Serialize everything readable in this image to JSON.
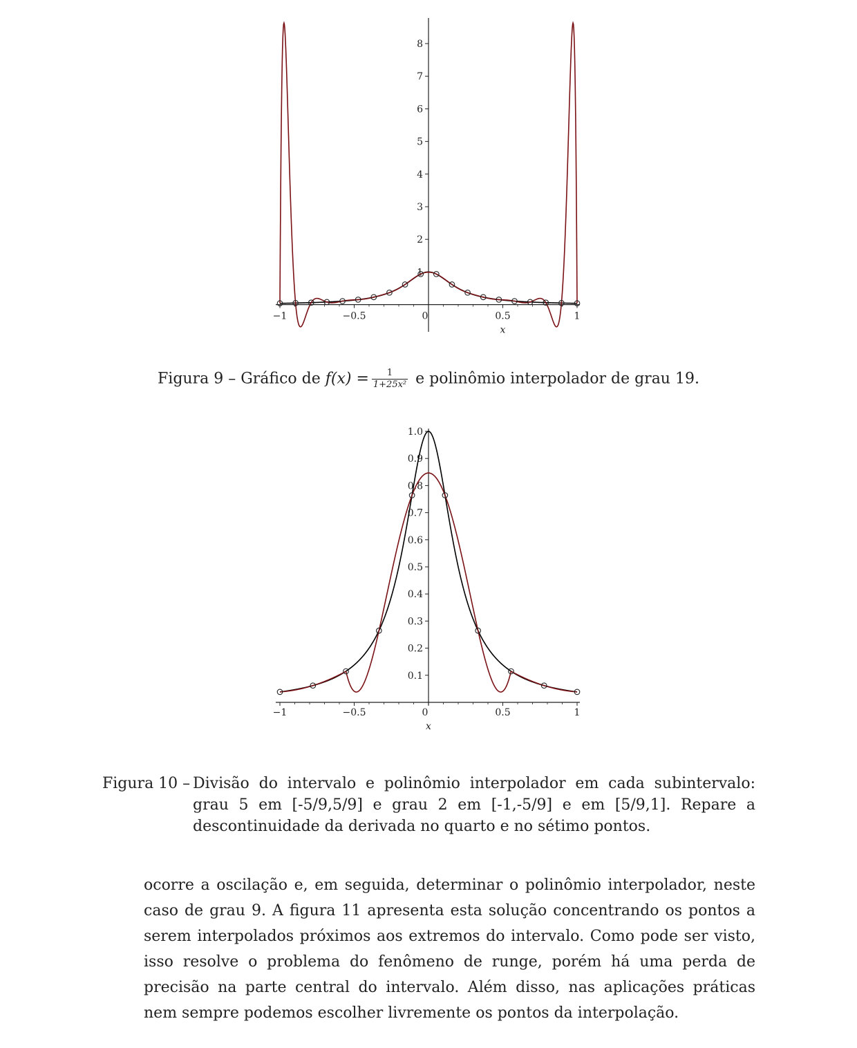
{
  "chart_data": [
    {
      "type": "line",
      "xlabel": "x",
      "xlim": [
        -1,
        1
      ],
      "ylim": [
        -0.75,
        8.7
      ],
      "x_ticks": [
        -1,
        -0.5,
        0,
        0.5,
        1
      ],
      "x_tick_labels": [
        "−1",
        "−0.5",
        "0",
        "0.5",
        "1"
      ],
      "y_ticks": [
        1,
        2,
        3,
        4,
        5,
        6,
        7,
        8
      ],
      "y_tick_labels": [
        "1",
        "2",
        "3",
        "4",
        "5",
        "6",
        "7",
        "8"
      ],
      "series": [
        {
          "function": "1/(1+25x^2)",
          "color": "#000000"
        },
        {
          "function": "interpolating polynomial, degree 19",
          "color": "#7a1216"
        }
      ],
      "points": {
        "x": [
          -1,
          -0.8947,
          -0.7895,
          -0.6842,
          -0.5789,
          -0.4737,
          -0.3684,
          -0.2632,
          -0.1579,
          -0.0526,
          0.0526,
          0.1579,
          0.2632,
          0.3684,
          0.4737,
          0.5789,
          0.6842,
          0.7895,
          0.8947,
          1
        ],
        "y": [
          0.0385,
          0.0476,
          0.0603,
          0.0787,
          0.1066,
          0.1513,
          0.2277,
          0.3661,
          0.616,
          0.9353,
          0.9353,
          0.616,
          0.3661,
          0.2277,
          0.1513,
          0.1066,
          0.0787,
          0.0603,
          0.0476,
          0.0385
        ]
      }
    },
    {
      "type": "line",
      "xlabel": "x",
      "xlim": [
        -1,
        1
      ],
      "ylim": [
        0,
        1.0
      ],
      "x_ticks": [
        -1,
        -0.5,
        0,
        0.5,
        1
      ],
      "x_tick_labels": [
        "−1",
        "−0.5",
        "0",
        "0.5",
        "1"
      ],
      "y_ticks": [
        0.1,
        0.2,
        0.3,
        0.4,
        0.5,
        0.6,
        0.7,
        0.8,
        0.9,
        1.0
      ],
      "y_tick_labels": [
        "0.1",
        "0.2",
        "0.3",
        "0.4",
        "0.5",
        "0.6",
        "0.7",
        "0.8",
        "0.9",
        "1.0"
      ],
      "series": [
        {
          "function": "1/(1+25x^2)",
          "color": "#000000"
        },
        {
          "function": "piecewise interpolating polynomial (degree 2, 5, 2)",
          "color": "#7a1216"
        }
      ],
      "points": {
        "x": [
          -1,
          -0.7778,
          -0.5556,
          -0.3333,
          -0.1111,
          0.1111,
          0.3333,
          0.5556,
          0.7778,
          1
        ],
        "y": [
          0.0385,
          0.062,
          0.1147,
          0.2647,
          0.7642,
          0.7642,
          0.2647,
          0.1147,
          0.062,
          0.0385
        ]
      }
    }
  ],
  "figure9": {
    "caption_label": "Figura 9 – Gráfico de ",
    "caption_func": "f(x) =",
    "caption_num": "1",
    "caption_den": "1+25x²",
    "caption_rest": " e polinômio interpolador de grau 19."
  },
  "figure10": {
    "caption_label": "Figura 10 –",
    "caption_body": "Divisão do intervalo e polinômio interpolador em cada subintervalo: grau 5 em [-5/9,5/9] e grau 2 em [-1,-5/9] e em [5/9,1]. Repare a descontinuidade da derivada no quarto e no sétimo pontos."
  },
  "paragraph": "ocorre a oscilação e, em seguida, determinar o polinômio interpolador, neste caso de grau 9. A figura 11 apresenta esta solução concentrando os pontos a serem interpolados próximos aos extremos do intervalo. Como pode ser visto, isso resolve o problema do fenômeno de runge, porém há uma perda de precisão na parte central do intervalo. Além disso, nas aplicações práticas nem sempre podemos escolher livremente os pontos da interpolação."
}
